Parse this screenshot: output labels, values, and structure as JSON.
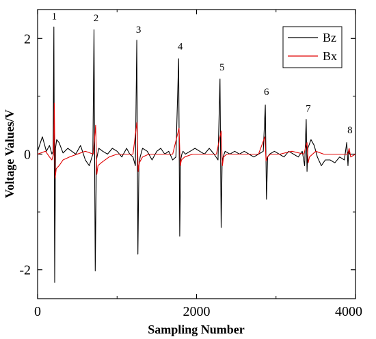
{
  "chart_data": {
    "type": "line",
    "xlabel": "Sampling Number",
    "ylabel": "Voltage Values/V",
    "xlim": [
      0,
      4000
    ],
    "ylim": [
      -2.5,
      2.5
    ],
    "xticks": [
      0,
      2000,
      4000
    ],
    "yticks": [
      -2,
      0,
      2
    ],
    "grid": false,
    "legend_position": "top-right",
    "series": [
      {
        "name": "Bz",
        "color": "#000000",
        "x": [
          0,
          60,
          110,
          150,
          180,
          195,
          205,
          215,
          225,
          240,
          270,
          320,
          380,
          430,
          480,
          540,
          600,
          650,
          695,
          710,
          725,
          740,
          770,
          820,
          880,
          940,
          1000,
          1060,
          1120,
          1160,
          1200,
          1230,
          1248,
          1262,
          1275,
          1290,
          1320,
          1380,
          1440,
          1500,
          1550,
          1600,
          1650,
          1700,
          1740,
          1775,
          1788,
          1800,
          1815,
          1830,
          1860,
          1920,
          1980,
          2040,
          2100,
          2160,
          2220,
          2270,
          2295,
          2310,
          2322,
          2335,
          2360,
          2420,
          2480,
          2540,
          2600,
          2660,
          2720,
          2780,
          2840,
          2865,
          2880,
          2895,
          2920,
          2980,
          3040,
          3100,
          3160,
          3220,
          3280,
          3330,
          3360,
          3380,
          3390,
          3400,
          3440,
          3480,
          3520,
          3570,
          3620,
          3680,
          3740,
          3800,
          3860,
          3890,
          3905,
          3915,
          3925,
          3950,
          4000
        ],
        "y": [
          0.05,
          0.3,
          0.05,
          0.15,
          0.0,
          0.05,
          2.2,
          -2.22,
          0.1,
          0.25,
          0.2,
          0.02,
          0.1,
          0.05,
          0.0,
          0.15,
          -0.1,
          -0.2,
          0.0,
          2.15,
          -2.02,
          -0.1,
          0.1,
          0.05,
          0.0,
          0.1,
          0.05,
          -0.05,
          0.1,
          0.0,
          -0.05,
          -0.2,
          1.97,
          -1.73,
          -0.2,
          -0.05,
          0.1,
          0.05,
          -0.1,
          0.05,
          0.1,
          0.0,
          0.05,
          -0.1,
          -0.05,
          1.65,
          -1.42,
          -0.1,
          0.0,
          0.05,
          0.0,
          0.05,
          0.1,
          0.05,
          0.0,
          0.1,
          0.0,
          -0.1,
          1.3,
          -1.27,
          -0.15,
          -0.05,
          0.05,
          0.0,
          0.05,
          0.0,
          0.05,
          0.0,
          -0.05,
          0.0,
          0.05,
          0.85,
          -0.78,
          -0.05,
          0.0,
          0.05,
          0.0,
          -0.05,
          0.05,
          0.0,
          -0.05,
          0.05,
          -0.2,
          0.6,
          -0.3,
          0.1,
          0.25,
          0.15,
          -0.05,
          -0.2,
          -0.1,
          -0.1,
          -0.15,
          -0.05,
          -0.1,
          0.2,
          -0.2,
          0.05,
          0.0,
          0.0,
          0.0
        ]
      },
      {
        "name": "Bx",
        "color": "#e00000",
        "x": [
          0,
          100,
          150,
          180,
          200,
          210,
          220,
          235,
          270,
          320,
          400,
          500,
          600,
          700,
          730,
          745,
          760,
          800,
          900,
          1000,
          1100,
          1200,
          1250,
          1265,
          1280,
          1320,
          1400,
          1500,
          1600,
          1700,
          1780,
          1795,
          1810,
          1850,
          1950,
          2050,
          2150,
          2250,
          2310,
          2325,
          2340,
          2380,
          2480,
          2580,
          2680,
          2780,
          2860,
          2875,
          2890,
          2930,
          3050,
          3200,
          3350,
          3390,
          3405,
          3420,
          3500,
          3600,
          3700,
          3800,
          3900,
          3920,
          3940,
          4000
        ],
        "y": [
          0.0,
          0.05,
          -0.05,
          -0.1,
          0.0,
          0.88,
          -0.42,
          -0.25,
          -0.2,
          -0.1,
          -0.05,
          0.0,
          0.05,
          0.0,
          0.5,
          -0.35,
          -0.2,
          -0.15,
          -0.05,
          0.0,
          0.0,
          0.0,
          0.55,
          -0.3,
          -0.15,
          -0.05,
          0.0,
          0.0,
          0.0,
          0.0,
          0.45,
          -0.2,
          -0.1,
          -0.05,
          0.0,
          0.0,
          0.0,
          0.0,
          0.4,
          -0.2,
          -0.05,
          0.0,
          0.0,
          0.0,
          0.0,
          0.0,
          0.3,
          -0.12,
          -0.05,
          0.0,
          0.0,
          0.05,
          0.0,
          0.2,
          -0.15,
          -0.05,
          0.05,
          0.0,
          0.0,
          0.0,
          0.0,
          0.1,
          -0.05,
          0.0
        ]
      }
    ],
    "annotations": [
      {
        "text": "1",
        "x": 210,
        "y": 2.33
      },
      {
        "text": "2",
        "x": 735,
        "y": 2.3
      },
      {
        "text": "3",
        "x": 1270,
        "y": 2.1
      },
      {
        "text": "4",
        "x": 1795,
        "y": 1.81
      },
      {
        "text": "5",
        "x": 2320,
        "y": 1.45
      },
      {
        "text": "6",
        "x": 2880,
        "y": 1.02
      },
      {
        "text": "7",
        "x": 3405,
        "y": 0.73
      },
      {
        "text": "8",
        "x": 3930,
        "y": 0.36
      }
    ]
  }
}
